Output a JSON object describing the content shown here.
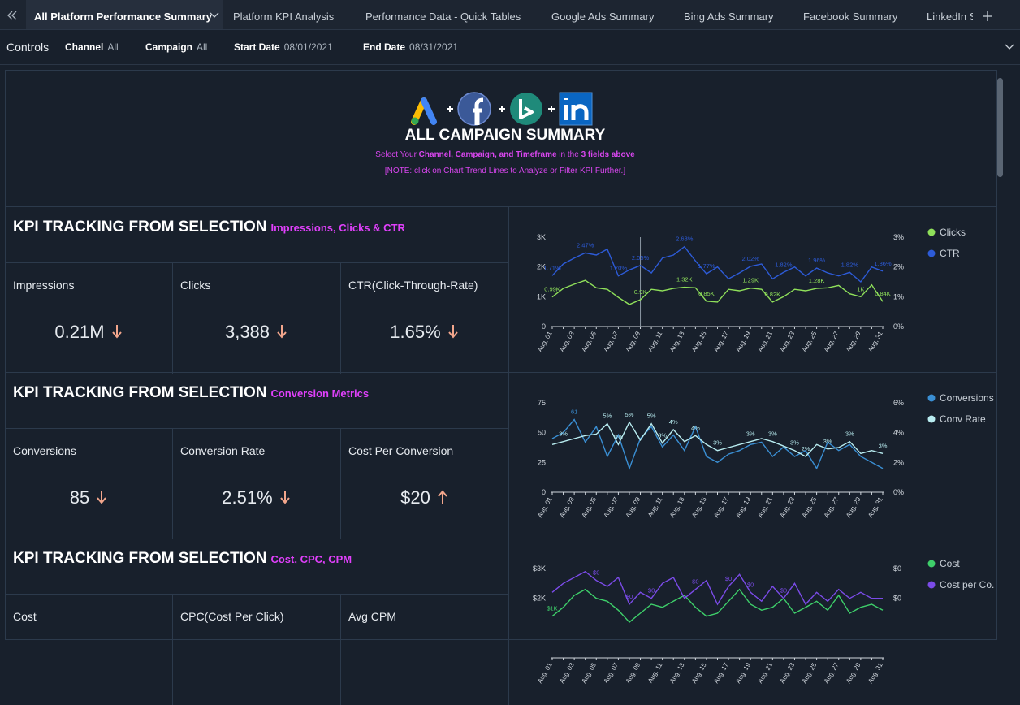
{
  "tabs": [
    "All Platform Performance Summary",
    "Platform KPI Analysis",
    "Performance Data - Quick Tables",
    "Google Ads Summary",
    "Bing Ads Summary",
    "Facebook Summary",
    "LinkedIn S"
  ],
  "controls": {
    "title": "Controls",
    "items": [
      {
        "label": "Channel",
        "value": "All"
      },
      {
        "label": "Campaign",
        "value": "All"
      },
      {
        "label": "Start Date",
        "value": "08/01/2021"
      },
      {
        "label": "End Date",
        "value": "08/31/2021"
      }
    ]
  },
  "header": {
    "title": "ALL CAMPAIGN SUMMARY",
    "instruction": [
      {
        "text": "Select Your ",
        "bold": false
      },
      {
        "text": "Channel, Campaign, and Timeframe",
        "bold": true
      },
      {
        "text": " in the ",
        "bold": false
      },
      {
        "text": "3 fields above",
        "bold": true
      }
    ],
    "note": "[NOTE: click on Chart Trend Lines to Analyze or Filter KPI Further.]"
  },
  "sections": [
    {
      "title": "KPI TRACKING FROM SELECTION",
      "subtitle": "Impressions, Clicks & CTR",
      "metrics": [
        {
          "label": "Impressions",
          "value": "0.21M",
          "trend": "down"
        },
        {
          "label": "Clicks",
          "value": "3,388",
          "trend": "down"
        },
        {
          "label": "CTR(Click-Through-Rate)",
          "value": "1.65%",
          "trend": "down"
        }
      ]
    },
    {
      "title": "KPI TRACKING FROM SELECTION",
      "subtitle": "Conversion Metrics",
      "metrics": [
        {
          "label": "Conversions",
          "value": "85",
          "trend": "down"
        },
        {
          "label": "Conversion Rate",
          "value": "2.51%",
          "trend": "down"
        },
        {
          "label": "Cost Per Conversion",
          "value": "$20",
          "trend": "up"
        }
      ]
    },
    {
      "title": "KPI TRACKING FROM SELECTION",
      "subtitle": "Cost, CPC, CPM",
      "metrics": [
        {
          "label": "Cost"
        },
        {
          "label": "CPC(Cost Per Click)"
        },
        {
          "label": "Avg CPM"
        }
      ]
    }
  ],
  "chart_data": [
    {
      "type": "line",
      "legend": "upper right",
      "categories": [
        "Aug, 01",
        null,
        "Aug, 03",
        null,
        "Aug, 05",
        null,
        "Aug, 07",
        null,
        "Aug, 09",
        null,
        "Aug, 11",
        null,
        "Aug, 13",
        null,
        "Aug, 15",
        null,
        "Aug, 17",
        null,
        "Aug, 19",
        null,
        "Aug, 21",
        null,
        "Aug, 23",
        null,
        "Aug, 25",
        null,
        "Aug, 27",
        null,
        "Aug, 29",
        null,
        "Aug, 31"
      ],
      "ylim": [
        0,
        3000
      ],
      "yticks": [
        0,
        {
          "value": 1000,
          "label": "1K"
        },
        {
          "value": 2000,
          "label": "2K"
        },
        {
          "value": 3000,
          "label": "3K"
        }
      ],
      "y2lim": [
        0,
        3
      ],
      "y2ticks": [
        {
          "value": 0,
          "label": "0%"
        },
        {
          "value": 1,
          "label": "1%"
        },
        {
          "value": 2,
          "label": "2%"
        },
        {
          "value": 3,
          "label": "3%"
        }
      ],
      "series": [
        {
          "name": "Clicks",
          "color": "#8fe05a",
          "values": [
            990,
            1280,
            1420,
            1550,
            1300,
            1250,
            980,
            740,
            900,
            1250,
            1200,
            1280,
            1320,
            1300,
            850,
            820,
            1250,
            1200,
            1290,
            1250,
            820,
            1000,
            1250,
            1200,
            1280,
            1300,
            1380,
            1100,
            1000,
            1400,
            840
          ],
          "value_labels": [
            "0.99K",
            null,
            null,
            null,
            null,
            null,
            null,
            null,
            "0.9K",
            null,
            null,
            null,
            "1.32K",
            null,
            "0.85K",
            null,
            null,
            null,
            "1.29K",
            null,
            "0.82K",
            null,
            null,
            null,
            "1.28K",
            null,
            null,
            null,
            "1K",
            null,
            "0.84K"
          ]
        },
        {
          "name": "CTR",
          "color": "#2d5bd8",
          "axis": "y2",
          "values": [
            1.71,
            2.1,
            2.3,
            2.47,
            2.4,
            2.6,
            1.7,
            1.9,
            2.05,
            1.8,
            2.3,
            2.4,
            2.68,
            2.2,
            1.77,
            2.0,
            1.6,
            1.8,
            2.02,
            2.1,
            1.6,
            1.82,
            2.0,
            1.7,
            1.96,
            1.8,
            1.7,
            1.82,
            1.5,
            2.0,
            1.86
          ],
          "value_labels": [
            "1.71%",
            null,
            null,
            "2.47%",
            null,
            null,
            "1.70%",
            null,
            "2.05%",
            null,
            null,
            null,
            "2.68%",
            null,
            "1.77%",
            null,
            null,
            null,
            "2.02%",
            null,
            null,
            "1.82%",
            null,
            null,
            "1.96%",
            null,
            null,
            "1.82%",
            null,
            null,
            "1.86%"
          ]
        }
      ]
    },
    {
      "type": "line",
      "legend": "upper right",
      "categories": [
        "Aug, 01",
        null,
        "Aug, 03",
        null,
        "Aug, 05",
        null,
        "Aug, 07",
        null,
        "Aug, 09",
        null,
        "Aug, 11",
        null,
        "Aug, 13",
        null,
        "Aug, 15",
        null,
        "Aug, 17",
        null,
        "Aug, 19",
        null,
        "Aug, 21",
        null,
        "Aug, 23",
        null,
        "Aug, 25",
        null,
        "Aug, 27",
        null,
        "Aug, 29",
        null,
        "Aug, 31"
      ],
      "ylim": [
        0,
        75
      ],
      "yticks": [
        0,
        25,
        50,
        75
      ],
      "y2lim": [
        0,
        6
      ],
      "y2ticks": [
        {
          "value": 0,
          "label": "0%"
        },
        {
          "value": 2,
          "label": "2%"
        },
        {
          "value": 4,
          "label": "4%"
        },
        {
          "value": 6,
          "label": "6%"
        }
      ],
      "series": [
        {
          "name": "Conversions",
          "color": "#3a8fd4",
          "values": [
            45,
            50,
            61,
            42,
            55,
            30,
            48,
            20,
            45,
            55,
            38,
            48,
            35,
            55,
            30,
            25,
            32,
            35,
            40,
            42,
            30,
            38,
            30,
            35,
            20,
            42,
            35,
            40,
            30,
            25,
            20
          ],
          "value_labels": [
            null,
            null,
            "61",
            null,
            null,
            null,
            null,
            null,
            null,
            null,
            null,
            null,
            null,
            null,
            null,
            null,
            null,
            null,
            null,
            null,
            null,
            null,
            null,
            null,
            null,
            null,
            null,
            null,
            null,
            null,
            null
          ]
        },
        {
          "name": "Conv Rate",
          "color": "#b8ecf0",
          "axis": "y2",
          "values": [
            3.2,
            3.4,
            3.6,
            3.8,
            3.9,
            4.6,
            3.2,
            4.7,
            3.5,
            4.6,
            3.3,
            4.2,
            3.4,
            3.8,
            3.2,
            2.8,
            3.0,
            3.2,
            3.4,
            3.6,
            3.4,
            3.1,
            2.8,
            2.4,
            3.2,
            2.9,
            3.0,
            3.4,
            2.6,
            2.8,
            2.6
          ],
          "value_labels": [
            null,
            "3%",
            null,
            null,
            null,
            "5%",
            "3%",
            "5%",
            null,
            "5%",
            "3%",
            "4%",
            null,
            "4%",
            null,
            "3%",
            null,
            null,
            "3%",
            null,
            "3%",
            null,
            "3%",
            "2%",
            null,
            "3%",
            null,
            "3%",
            null,
            null,
            "3%"
          ]
        }
      ]
    },
    {
      "type": "line",
      "legend": "upper right",
      "categories": [
        "Aug, 01",
        null,
        "Aug, 03",
        null,
        "Aug, 05",
        null,
        "Aug, 07",
        null,
        "Aug, 09",
        null,
        "Aug, 11",
        null,
        "Aug, 13",
        null,
        "Aug, 15",
        null,
        "Aug, 17",
        null,
        "Aug, 19",
        null,
        "Aug, 21",
        null,
        "Aug, 23",
        null,
        "Aug, 25",
        null,
        "Aug, 27",
        null,
        "Aug, 29",
        null,
        "Aug, 31"
      ],
      "ylim": [
        0,
        3000
      ],
      "yticks": [
        {
          "value": 2000,
          "label": "$2K"
        },
        {
          "value": 3000,
          "label": "$3K"
        }
      ],
      "y2lim": [
        0,
        0.3
      ],
      "y2ticks": [
        {
          "value": 0.2,
          "label": "$0"
        },
        {
          "value": 0.3,
          "label": "$0"
        }
      ],
      "series": [
        {
          "name": "Cost",
          "color": "#3ecf6a",
          "values": [
            1400,
            1700,
            2100,
            2300,
            2000,
            1900,
            1600,
            1200,
            1500,
            1800,
            1700,
            1900,
            2100,
            1700,
            1400,
            1500,
            1900,
            2300,
            1800,
            1600,
            1700,
            2000,
            1500,
            1700,
            1900,
            1600,
            2100,
            1500,
            1700,
            1800,
            1600
          ],
          "value_labels": [
            "$1K",
            null,
            null,
            null,
            null,
            null,
            null,
            null,
            null,
            null,
            null,
            null,
            null,
            null,
            null,
            null,
            null,
            null,
            null,
            null,
            null,
            null,
            null,
            null,
            null,
            null,
            null,
            null,
            null,
            null,
            null
          ]
        },
        {
          "name": "Cost per Co...",
          "color": "#7b4be8",
          "axis": "y2",
          "values": [
            0.22,
            0.25,
            0.27,
            0.29,
            0.26,
            0.24,
            0.27,
            0.18,
            0.22,
            0.2,
            0.25,
            0.27,
            0.2,
            0.23,
            0.26,
            0.18,
            0.24,
            0.28,
            0.22,
            0.19,
            0.24,
            0.2,
            0.25,
            0.18,
            0.22,
            0.19,
            0.23,
            0.2,
            0.22,
            0.2,
            0.2
          ],
          "value_labels": [
            null,
            null,
            null,
            null,
            "$0",
            null,
            null,
            "$0",
            null,
            "$0",
            null,
            null,
            null,
            "$0",
            null,
            null,
            "$0",
            null,
            "$0",
            null,
            null,
            "$0",
            null,
            null,
            null,
            null,
            null,
            null,
            null,
            null,
            null
          ]
        }
      ]
    }
  ]
}
